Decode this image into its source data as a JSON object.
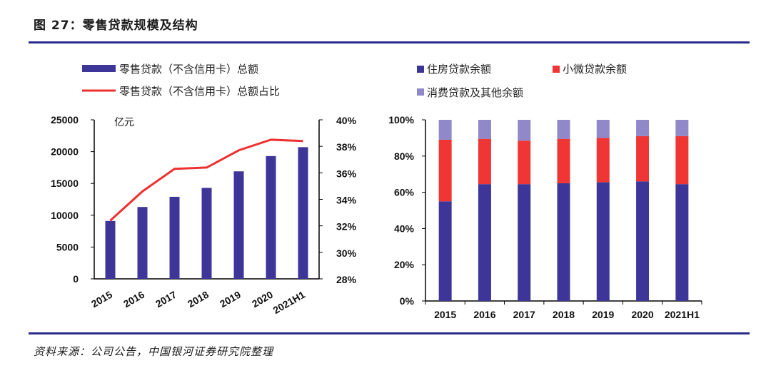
{
  "header": {
    "title": "图 27：零售贷款规模及结构"
  },
  "footer": {
    "source": "资料来源：公司公告，中国银河证券研究院整理"
  },
  "chart_data": [
    {
      "type": "bar",
      "categories": [
        "2015",
        "2016",
        "2017",
        "2018",
        "2019",
        "2020",
        "2021H1"
      ],
      "unit_label": "亿元",
      "ylim": [
        0,
        25000
      ],
      "y2lim": [
        28,
        40
      ],
      "yticks": [
        "0",
        "5000",
        "10000",
        "15000",
        "20000",
        "25000"
      ],
      "y2ticks": [
        "28%",
        "30%",
        "32%",
        "34%",
        "36%",
        "38%",
        "40%"
      ],
      "series": [
        {
          "name": "零售贷款（不含信用卡）总额",
          "kind": "bar",
          "axis": "left",
          "color": "#3d3598",
          "values": [
            9100,
            11300,
            12900,
            14300,
            16900,
            19300,
            20700
          ]
        },
        {
          "name": "零售贷款（不含信用卡）总额占比",
          "kind": "line",
          "axis": "right",
          "color": "#ee3030",
          "values": [
            32.4,
            34.6,
            36.3,
            36.4,
            37.7,
            38.5,
            38.4
          ]
        }
      ]
    },
    {
      "type": "bar",
      "stacked": true,
      "categories": [
        "2015",
        "2016",
        "2017",
        "2018",
        "2019",
        "2020",
        "2021H1"
      ],
      "ylim": [
        0,
        100
      ],
      "yticks": [
        "0%",
        "20%",
        "40%",
        "60%",
        "80%",
        "100%"
      ],
      "series": [
        {
          "name": "住房贷款余额",
          "color": "#3d3598",
          "values": [
            55,
            64.5,
            64.5,
            65,
            65.5,
            66,
            64.5
          ]
        },
        {
          "name": "小微贷款余额",
          "color": "#f03535",
          "values": [
            34,
            25,
            24,
            24.5,
            24.5,
            25,
            26.5
          ]
        },
        {
          "name": "消费贷款及其他余额",
          "color": "#9088c8",
          "values": [
            11,
            10.5,
            11.5,
            10.5,
            10,
            9,
            9
          ]
        }
      ]
    }
  ]
}
